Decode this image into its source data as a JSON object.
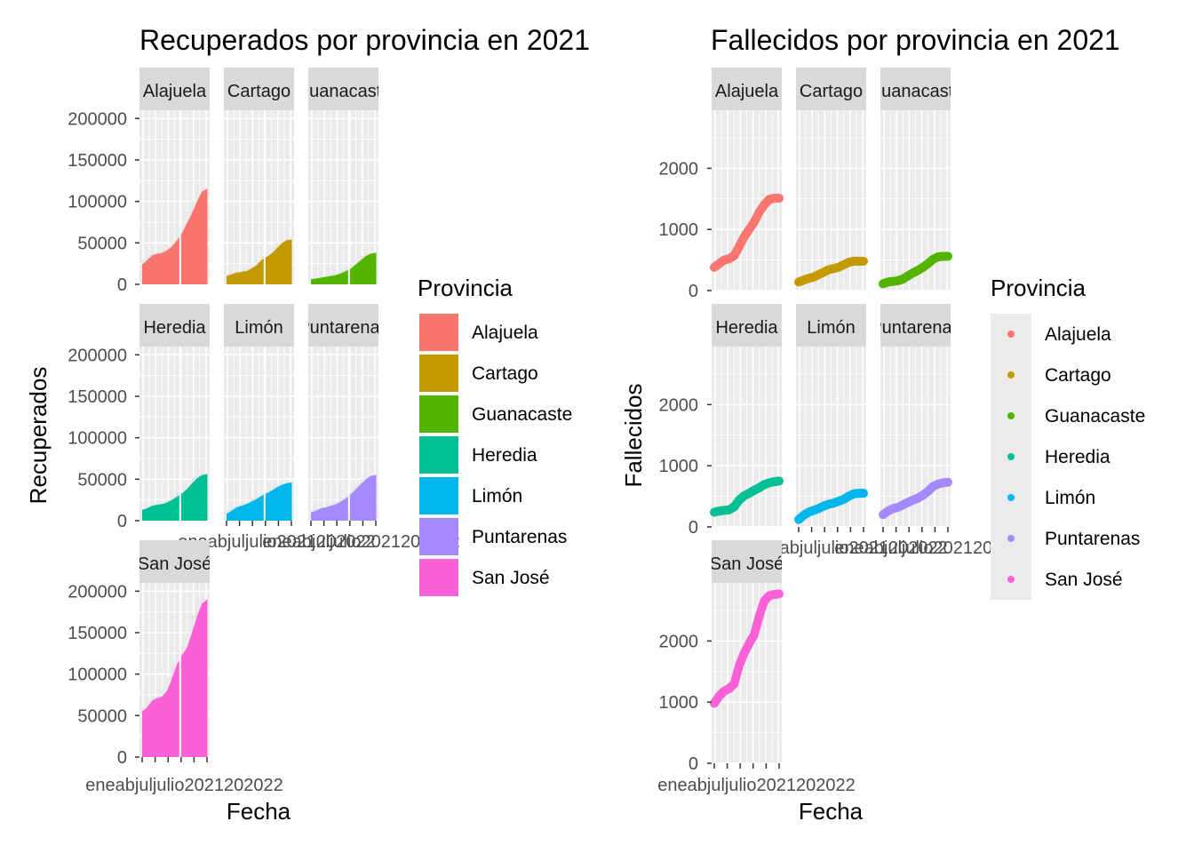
{
  "colors": {
    "panel_bg": "#EBEBEB",
    "grid": "#FFFFFF",
    "strip_bg": "#D9D9D9",
    "tick_text": "#4D4D4D",
    "Alajuela": "#F8766D",
    "Cartago": "#C49A00",
    "Guanacaste": "#53B400",
    "Heredia": "#00C094",
    "Limón": "#00B6EB",
    "Puntarenas": "#A58AFF",
    "San José": "#FB61D7"
  },
  "chart_data": [
    {
      "type": "bar",
      "title": "Recuperados por provincia en 2021",
      "xlabel": "Fecha",
      "ylabel": "Recuperados",
      "ylim": [
        0,
        210000
      ],
      "yticks": [
        "0",
        "50000",
        "100000",
        "150000",
        "200000"
      ],
      "ytick_values": [
        0,
        50000,
        100000,
        150000,
        200000
      ],
      "xticks_text": "eneabjuljulio2021202022",
      "facets": [
        "Alajuela",
        "Cartago",
        "Guanacaste",
        "Heredia",
        "Limón",
        "Puntarenas",
        "San José"
      ],
      "facet_labels": [
        "Alajuela",
        "Cartago",
        "Guanacaste",
        "Heredia",
        "Limón",
        "Puntarenas",
        "San José"
      ],
      "legend_title": "Provincia",
      "legend_position": "right",
      "series": [
        {
          "name": "Alajuela",
          "gap": 0.58,
          "values": [
            24000,
            29000,
            35000,
            37000,
            38000,
            41000,
            46000,
            53000,
            62000,
            74000,
            86000,
            100000,
            112000,
            115000
          ]
        },
        {
          "name": "Cartago",
          "gap": 0.58,
          "values": [
            10000,
            12000,
            14000,
            15000,
            16000,
            19000,
            23000,
            29000,
            33000,
            37000,
            43000,
            49000,
            53000,
            54000
          ]
        },
        {
          "name": "Guanacaste",
          "gap": 0.58,
          "values": [
            6000,
            7000,
            8000,
            9000,
            10000,
            11000,
            13000,
            16000,
            19000,
            24000,
            29000,
            34000,
            37000,
            38000
          ]
        },
        {
          "name": "Heredia",
          "gap": 0.58,
          "values": [
            13000,
            15000,
            18000,
            19000,
            20000,
            22000,
            25000,
            29000,
            33000,
            38000,
            45000,
            51000,
            55000,
            56000
          ]
        },
        {
          "name": "Limón",
          "gap": 0.58,
          "values": [
            8000,
            12000,
            16000,
            18000,
            20000,
            23000,
            26000,
            30000,
            33000,
            36000,
            40000,
            43000,
            45000,
            46000
          ]
        },
        {
          "name": "Puntarenas",
          "gap": 0.58,
          "values": [
            10000,
            12000,
            15000,
            16000,
            18000,
            20000,
            23000,
            27000,
            32000,
            38000,
            44000,
            50000,
            54000,
            55000
          ]
        },
        {
          "name": "San José",
          "gap": 0.58,
          "values": [
            55000,
            60000,
            68000,
            71000,
            73000,
            80000,
            95000,
            112000,
            123000,
            132000,
            150000,
            170000,
            185000,
            190000
          ]
        }
      ]
    },
    {
      "type": "scatter",
      "title": "Fallecidos por provincia en 2021",
      "xlabel": "Fecha",
      "ylabel": "Fallecidos",
      "ylim": [
        0,
        2950
      ],
      "yticks": [
        "0",
        "1000",
        "2000"
      ],
      "ytick_values": [
        0,
        1000,
        2000
      ],
      "xticks_text": "eneabjuljulio2021202022",
      "facets": [
        "Alajuela",
        "Cartago",
        "Guanacaste",
        "Heredia",
        "Limón",
        "Puntarenas",
        "San José"
      ],
      "facet_labels": [
        "Alajuela",
        "Cartago",
        "Guanacaste",
        "Heredia",
        "Limón",
        "Puntarenas",
        "San José"
      ],
      "legend_title": "Provincia",
      "legend_position": "right",
      "series": [
        {
          "name": "Alajuela",
          "values": [
            380,
            440,
            500,
            520,
            570,
            720,
            880,
            1000,
            1120,
            1280,
            1400,
            1490,
            1510,
            1510
          ]
        },
        {
          "name": "Cartago",
          "values": [
            140,
            170,
            200,
            220,
            260,
            300,
            340,
            360,
            380,
            420,
            460,
            480,
            480,
            480
          ]
        },
        {
          "name": "Guanacaste",
          "values": [
            110,
            140,
            150,
            160,
            190,
            240,
            290,
            330,
            380,
            440,
            510,
            550,
            560,
            560
          ]
        },
        {
          "name": "Heredia",
          "values": [
            240,
            260,
            270,
            280,
            330,
            440,
            510,
            550,
            600,
            640,
            690,
            720,
            740,
            750
          ]
        },
        {
          "name": "Limón",
          "values": [
            120,
            190,
            240,
            270,
            300,
            340,
            370,
            390,
            420,
            450,
            500,
            540,
            550,
            550
          ]
        },
        {
          "name": "Puntarenas",
          "values": [
            200,
            260,
            300,
            320,
            360,
            400,
            440,
            470,
            520,
            580,
            660,
            700,
            720,
            730
          ]
        },
        {
          "name": "San José",
          "values": [
            980,
            1100,
            1180,
            1220,
            1300,
            1600,
            1800,
            1960,
            2100,
            2400,
            2650,
            2740,
            2760,
            2770
          ]
        }
      ]
    }
  ]
}
